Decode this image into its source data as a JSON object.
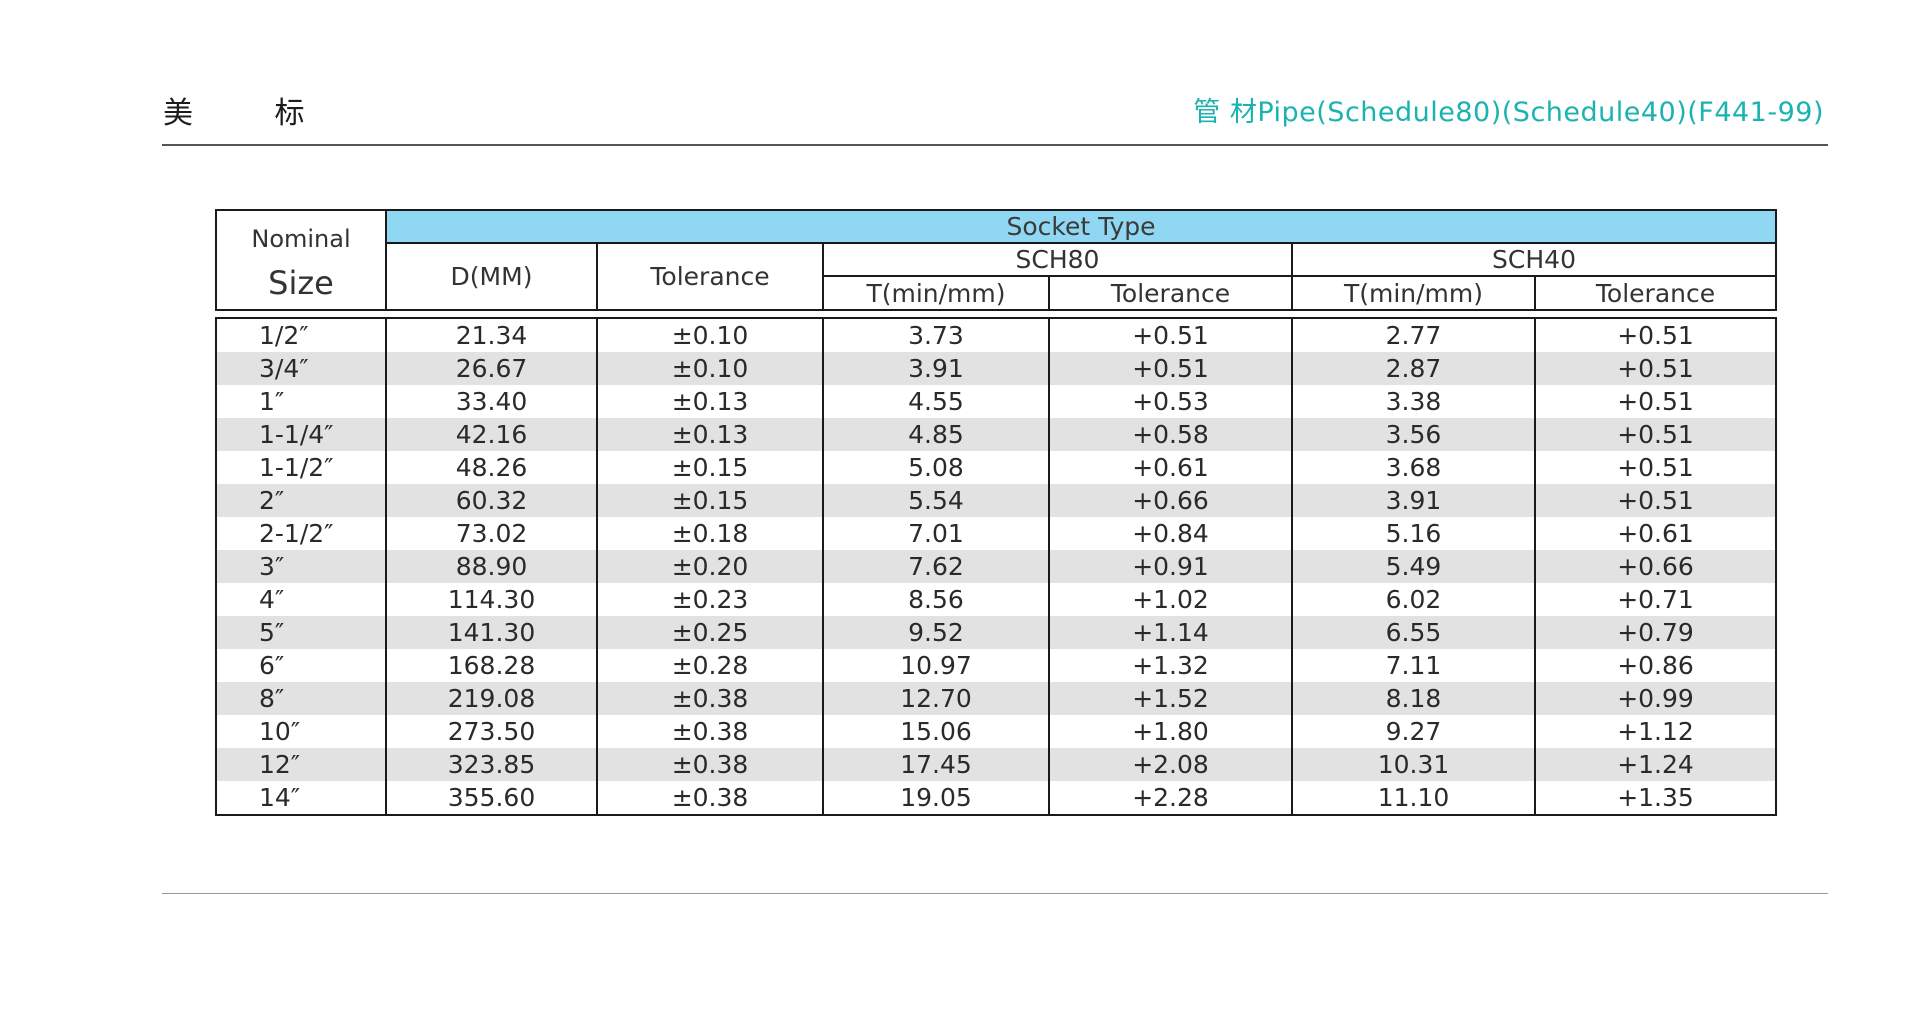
{
  "header": {
    "left_title": "美 标",
    "right_title": "管 材Pipe(Schedule80)(Schedule40)(F441-99)"
  },
  "table": {
    "nominal_label": "Nominal",
    "size_label": "Size",
    "socket_type": "Socket Type",
    "d_label": "D(MM)",
    "tolerance_label": "Tolerance",
    "sch80_label": "SCH80",
    "sch40_label": "SCH40",
    "t_label": "T(min/mm)",
    "rows": [
      [
        "1/2″",
        "21.34",
        "±0.10",
        "3.73",
        "+0.51",
        "2.77",
        "+0.51"
      ],
      [
        "3/4″",
        "26.67",
        "±0.10",
        "3.91",
        "+0.51",
        "2.87",
        "+0.51"
      ],
      [
        "1″",
        "33.40",
        "±0.13",
        "4.55",
        "+0.53",
        "3.38",
        "+0.51"
      ],
      [
        "1-1/4″",
        "42.16",
        "±0.13",
        "4.85",
        "+0.58",
        "3.56",
        "+0.51"
      ],
      [
        "1-1/2″",
        "48.26",
        "±0.15",
        "5.08",
        "+0.61",
        "3.68",
        "+0.51"
      ],
      [
        "2″",
        "60.32",
        "±0.15",
        "5.54",
        "+0.66",
        "3.91",
        "+0.51"
      ],
      [
        "2-1/2″",
        "73.02",
        "±0.18",
        "7.01",
        "+0.84",
        "5.16",
        "+0.61"
      ],
      [
        "3″",
        "88.90",
        "±0.20",
        "7.62",
        "+0.91",
        "5.49",
        "+0.66"
      ],
      [
        "4″",
        "114.30",
        "±0.23",
        "8.56",
        "+1.02",
        "6.02",
        "+0.71"
      ],
      [
        "5″",
        "141.30",
        "±0.25",
        "9.52",
        "+1.14",
        "6.55",
        "+0.79"
      ],
      [
        "6″",
        "168.28",
        "±0.28",
        "10.97",
        "+1.32",
        "7.11",
        "+0.86"
      ],
      [
        "8″",
        "219.08",
        "±0.38",
        "12.70",
        "+1.52",
        "8.18",
        "+0.99"
      ],
      [
        "10″",
        "273.50",
        "±0.38",
        "15.06",
        "+1.80",
        "9.27",
        "+1.12"
      ],
      [
        "12″",
        "323.85",
        "±0.38",
        "17.45",
        "+2.08",
        "10.31",
        "+1.24"
      ],
      [
        "14″",
        "355.60",
        "±0.38",
        "19.05",
        "+2.28",
        "11.10",
        "+1.35"
      ]
    ]
  },
  "colors": {
    "accent": "#1bb3b0",
    "header_fill": "#8fd7f2",
    "stripe": "#e2e2e2"
  }
}
